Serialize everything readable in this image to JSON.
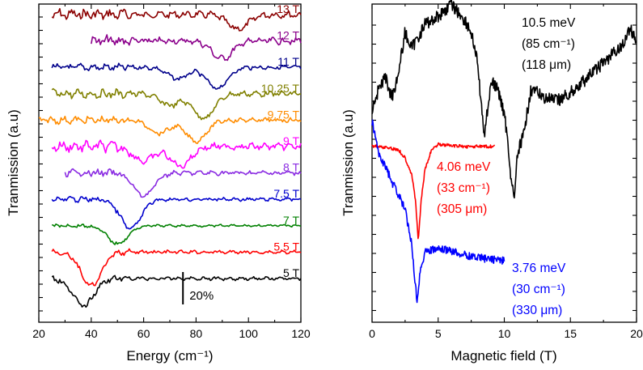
{
  "chart_data": [
    {
      "type": "line",
      "panel": "left",
      "xlabel": "Energy (cm⁻¹)",
      "ylabel": "Tranmission (a.u)",
      "xlim": [
        20,
        120
      ],
      "xticks": [
        "20",
        "40",
        "60",
        "80",
        "100",
        "120"
      ],
      "ytick_labels": "none",
      "scale_bar": {
        "label": "20%",
        "x": 75,
        "value": 20
      },
      "series": [
        {
          "name": "13 T",
          "color": "#8b0000",
          "x_range": [
            25,
            120
          ],
          "dips": [
            {
              "x": 96,
              "depth": 18
            }
          ],
          "wiggle": 6,
          "grid_pos": 0
        },
        {
          "name": "12 T",
          "color": "#8b008b",
          "x_range": [
            40,
            120
          ],
          "dips": [
            {
              "x": 90,
              "depth": 22
            }
          ],
          "wiggle": 6,
          "grid_pos": 1
        },
        {
          "name": "11 T",
          "color": "#00008b",
          "x_range": [
            25,
            120
          ],
          "dips": [
            {
              "x": 73,
              "depth": 14
            },
            {
              "x": 88,
              "depth": 26
            }
          ],
          "wiggle": 4,
          "grid_pos": 2
        },
        {
          "name": "10.25 T",
          "color": "#808000",
          "x_range": [
            25,
            120
          ],
          "dips": [
            {
              "x": 70,
              "depth": 14
            },
            {
              "x": 83,
              "depth": 30
            }
          ],
          "wiggle": 5,
          "grid_pos": 3
        },
        {
          "name": "9.75 T",
          "color": "#ff8c00",
          "x_range": [
            20,
            120
          ],
          "dips": [
            {
              "x": 66,
              "depth": 16
            },
            {
              "x": 80,
              "depth": 26
            }
          ],
          "wiggle": 4,
          "grid_pos": 4
        },
        {
          "name": "9 T",
          "color": "#ff00ff",
          "x_range": [
            25,
            120
          ],
          "dips": [
            {
              "x": 60,
              "depth": 18
            },
            {
              "x": 74,
              "depth": 24
            }
          ],
          "wiggle": 6,
          "grid_pos": 5
        },
        {
          "name": "8 T",
          "color": "#8a2be2",
          "x_range": [
            30,
            120
          ],
          "dips": [
            {
              "x": 60,
              "depth": 28
            }
          ],
          "wiggle": 4,
          "grid_pos": 6
        },
        {
          "name": "7.5 T",
          "color": "#0000cd",
          "x_range": [
            25,
            120
          ],
          "dips": [
            {
              "x": 55,
              "depth": 36
            }
          ],
          "wiggle": 3,
          "grid_pos": 7
        },
        {
          "name": "7 T",
          "color": "#008000",
          "x_range": [
            25,
            120
          ],
          "dips": [
            {
              "x": 50,
              "depth": 22
            }
          ],
          "wiggle": 2,
          "grid_pos": 8
        },
        {
          "name": "5.5 T",
          "color": "#ff0000",
          "x_range": [
            25,
            120
          ],
          "dips": [
            {
              "x": 40,
              "depth": 42
            }
          ],
          "wiggle": 3,
          "grid_pos": 9
        },
        {
          "name": "5 T",
          "color": "#000000",
          "x_range": [
            25,
            120
          ],
          "dips": [
            {
              "x": 37,
              "depth": 34
            }
          ],
          "wiggle": 3,
          "grid_pos": 10
        }
      ]
    },
    {
      "type": "line",
      "panel": "right",
      "xlabel": "Magnetic field (T)",
      "ylabel": "Tranmission (a.u)",
      "xlim": [
        0,
        20
      ],
      "xticks": [
        "0",
        "5",
        "10",
        "15",
        "20"
      ],
      "ytick_labels": "none",
      "series": [
        {
          "name": "10.5 meV",
          "color": "#000000",
          "annotation": [
            "10.5 meV",
            "(85 cm⁻¹)",
            "(118 μm)"
          ],
          "x_range": [
            0,
            20
          ],
          "points": [
            [
              0,
              135
            ],
            [
              0.5,
              110
            ],
            [
              1,
              95
            ],
            [
              1.5,
              120
            ],
            [
              2,
              90
            ],
            [
              2.5,
              40
            ],
            [
              3,
              60
            ],
            [
              4,
              30
            ],
            [
              5,
              20
            ],
            [
              6,
              5
            ],
            [
              7,
              25
            ],
            [
              7.5,
              40
            ],
            [
              8,
              80
            ],
            [
              8.3,
              140
            ],
            [
              8.5,
              165
            ],
            [
              8.7,
              140
            ],
            [
              9,
              100
            ],
            [
              9.5,
              110
            ],
            [
              10,
              140
            ],
            [
              10.3,
              180
            ],
            [
              10.6,
              235
            ],
            [
              10.8,
              240
            ],
            [
              11,
              190
            ],
            [
              11.5,
              165
            ],
            [
              12,
              110
            ],
            [
              13,
              120
            ],
            [
              14,
              125
            ],
            [
              15,
              115
            ],
            [
              16,
              100
            ],
            [
              17,
              85
            ],
            [
              18,
              70
            ],
            [
              19,
              55
            ],
            [
              19.5,
              35
            ],
            [
              20,
              50
            ]
          ],
          "noise": 8
        },
        {
          "name": "4.06 meV",
          "color": "#ff0000",
          "annotation": [
            "4.06 meV",
            "(33 cm⁻¹)",
            "(305 μm)"
          ],
          "x_range": [
            0,
            9.3
          ],
          "points": [
            [
              0,
              180
            ],
            [
              1,
              182
            ],
            [
              2,
              185
            ],
            [
              2.5,
              195
            ],
            [
              3,
              215
            ],
            [
              3.3,
              250
            ],
            [
              3.5,
              298
            ],
            [
              3.7,
              250
            ],
            [
              4,
              210
            ],
            [
              4.5,
              185
            ],
            [
              5,
              178
            ],
            [
              6,
              180
            ],
            [
              7,
              181
            ],
            [
              8,
              181
            ],
            [
              9.3,
              181
            ]
          ],
          "noise": 2
        },
        {
          "name": "3.76 meV",
          "color": "#0000ff",
          "annotation": [
            "3.76 meV",
            "(30 cm⁻¹)",
            "(330 μm)"
          ],
          "x_range": [
            0,
            10
          ],
          "points": [
            [
              0,
              150
            ],
            [
              0.5,
              190
            ],
            [
              1,
              205
            ],
            [
              1.5,
              225
            ],
            [
              2,
              240
            ],
            [
              2.5,
              260
            ],
            [
              3,
              300
            ],
            [
              3.2,
              340
            ],
            [
              3.4,
              370
            ],
            [
              3.6,
              340
            ],
            [
              4,
              310
            ],
            [
              5,
              308
            ],
            [
              6,
              310
            ],
            [
              7,
              315
            ],
            [
              8,
              318
            ],
            [
              9,
              320
            ],
            [
              10,
              322
            ]
          ],
          "noise": 5
        }
      ]
    }
  ]
}
